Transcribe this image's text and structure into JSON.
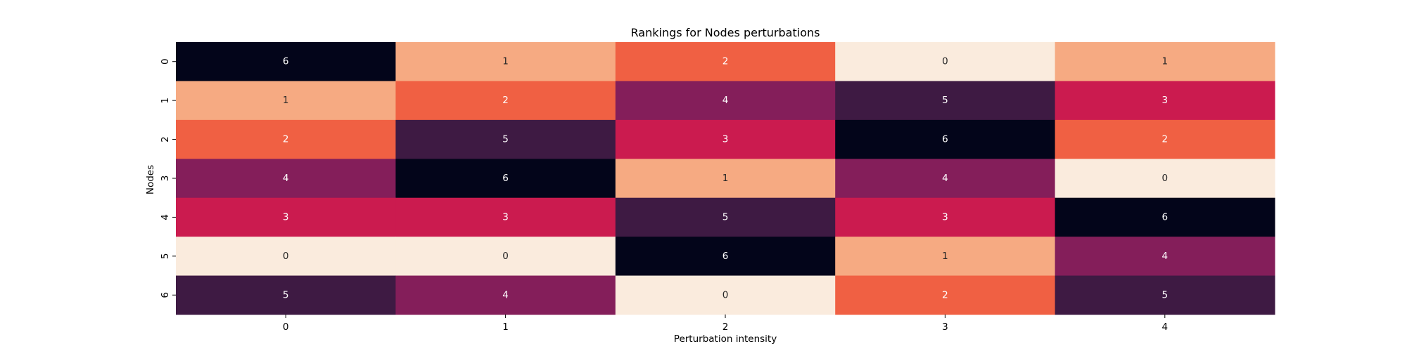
{
  "chart_data": {
    "type": "heatmap",
    "title": "Rankings for Nodes perturbations",
    "xlabel": "Perturbation intensity",
    "ylabel": "Nodes",
    "x_categories": [
      "0",
      "1",
      "2",
      "3",
      "4"
    ],
    "y_categories": [
      "0",
      "1",
      "2",
      "3",
      "4",
      "5",
      "6"
    ],
    "values": [
      [
        6,
        1,
        2,
        0,
        1
      ],
      [
        1,
        2,
        4,
        5,
        3
      ],
      [
        2,
        5,
        3,
        6,
        2
      ],
      [
        4,
        6,
        1,
        4,
        0
      ],
      [
        3,
        3,
        5,
        3,
        6
      ],
      [
        0,
        0,
        6,
        1,
        4
      ],
      [
        5,
        4,
        0,
        2,
        5
      ]
    ],
    "annotations": true,
    "colorbar": false,
    "grid": false,
    "value_colors": {
      "0": "#faebdd",
      "1": "#f6aa82",
      "2": "#f06043",
      "3": "#cb1b4f",
      "4": "#841e5a",
      "5": "#3e1a43",
      "6": "#03051a"
    },
    "label_colors": {
      "light_background": "#262626",
      "dark_background": "#ffffff"
    }
  }
}
